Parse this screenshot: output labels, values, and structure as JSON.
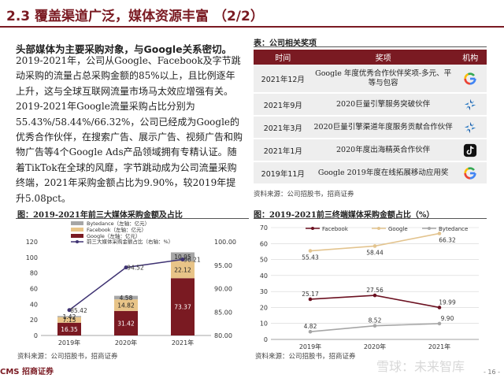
{
  "header": {
    "title": "2.3 覆盖渠道广泛，媒体资源丰富  （2/2）"
  },
  "left": {
    "lead": "头部媒体为主要采购对象，与Google关系密切。",
    "paragraph": "2019-2021年，公司从Google、Facebook及字节跳动采购的流量占总采购金额的85%以上，且比例逐年上升，这与全球互联网流量市场马太效应增强有关。2019-2021年Google流量采购占比分别为55.43%/58.44%/66.32%，公司已经成为Google的优秀合作伙伴，在搜索广告、展示广告、视频广告和购物广告等4个Google Ads产品领域拥有专精认证。随着TikTok在全球的风靡，字节跳动成为公司流量采购终端，2021年采购金额占比为9.90%，较2019年提升5.08pct。"
  },
  "table": {
    "caption": "表：公司相关奖项",
    "headers": [
      "时间",
      "奖项",
      "机构"
    ],
    "rows": [
      {
        "time": "2021年12月",
        "award": "Google 年度优秀合作伙伴奖项-多元、平等与包容",
        "org": "google-logo"
      },
      {
        "time": "2021年9月",
        "award": "2020巨量引擎服务突破伙伴",
        "org": "oceanengine-logo"
      },
      {
        "time": "2021年3月",
        "award": "2020巨量引擎渠道年度服务贡献合作伙伴",
        "org": "oceanengine-logo"
      },
      {
        "time": "2021年1月",
        "award": "2020年度出海精英合作伙伴",
        "org": "tiktok-logo"
      },
      {
        "time": "2019年11月",
        "award": "Google 2019年度在线拓展移动应用奖",
        "org": "google-logo"
      }
    ],
    "source": "资料来源：公司招股书，招商证券"
  },
  "chart_data": [
    {
      "type": "bar",
      "caption": "图：2019-2021年前三大媒体采购金额及占比",
      "categories": [
        "2019年",
        "2020年",
        "2021年"
      ],
      "stacked": true,
      "series": [
        {
          "name": "Google（左轴：亿元）",
          "values": [
            16.35,
            31.42,
            73.37
          ],
          "color": "#7a1a22"
        },
        {
          "name": "Facebook（左轴：亿元）",
          "values": [
            7.15,
            14.82,
            22.12
          ],
          "color": "#e8c488"
        },
        {
          "name": "Bytedance（左轴：亿元）",
          "values": [
            1.42,
            4.58,
            10.95
          ],
          "color": "#a6a6a6"
        }
      ],
      "line": {
        "name": "前三大媒体采购金额占比（右轴：%）",
        "values": [
          85.42,
          94.52,
          96.21
        ],
        "color": "#3f3373"
      },
      "y_left": {
        "min": 0,
        "max": 120,
        "ticks": [
          0,
          20,
          40,
          60,
          80,
          100,
          120
        ]
      },
      "y_right": {
        "min": 80,
        "max": 100,
        "ticks": [
          "80.00",
          "85.00",
          "90.00",
          "95.00",
          "100.00"
        ]
      },
      "labels": {
        "bar": [
          [
            "16.35",
            "31.42",
            "73.37"
          ],
          [
            "7.15",
            "14.82",
            "22.12"
          ],
          [
            "1.42",
            "4.58",
            "10.95"
          ]
        ],
        "line": [
          "85.42",
          "94.52",
          "96.21"
        ]
      },
      "source": "资料来源：公司招股书，招商证券"
    },
    {
      "type": "line",
      "caption": "图：2019-2021前三终端媒体采购金额占比（%）",
      "categories": [
        "2019年",
        "2020年",
        "2021年"
      ],
      "series": [
        {
          "name": "Facebook",
          "values": [
            25.17,
            27.56,
            19.99
          ],
          "labels": [
            "25.17",
            "27.56",
            "19.99"
          ],
          "color": "#6b1020"
        },
        {
          "name": "Google",
          "values": [
            55.43,
            58.44,
            66.32
          ],
          "labels": [
            "55.43",
            "58.44",
            "66.32"
          ],
          "color": "#e3c48f"
        },
        {
          "name": "Bytedance",
          "values": [
            4.82,
            8.52,
            9.9
          ],
          "labels": [
            "4.82",
            "8.52",
            "9.90"
          ],
          "color": "#a6a6a6"
        }
      ],
      "y": {
        "min": 0,
        "max": 70,
        "ticks": [
          0,
          10,
          20,
          30,
          40,
          50,
          60,
          70
        ]
      },
      "grid": true,
      "legend": "top",
      "source": "资料来源：公司招股书，招商证券"
    }
  ],
  "footer": {
    "logo": "CMS 招商证券",
    "watermark": "雪球：未来智库",
    "page": "- 16 -"
  }
}
